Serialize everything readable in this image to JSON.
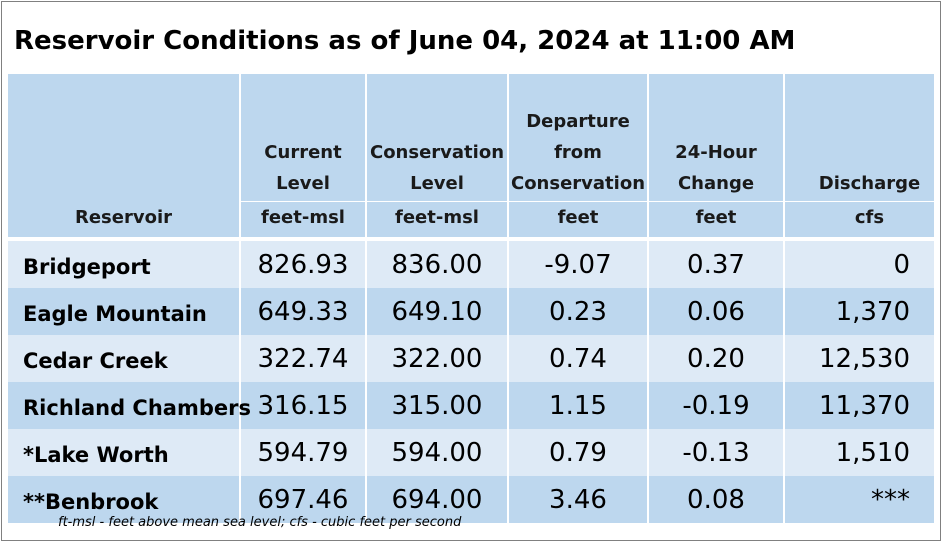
{
  "title": "Reservoir Conditions as of June 04, 2024 at 11:00 AM",
  "columns": [
    {
      "lines": [
        ""
      ],
      "label": "Reservoir",
      "unit": ""
    },
    {
      "lines": [
        "Current",
        "Level"
      ],
      "unit": "feet-msl"
    },
    {
      "lines": [
        "Conservation",
        "Level"
      ],
      "unit": "feet-msl"
    },
    {
      "lines": [
        "Departure",
        "from",
        "Conservation"
      ],
      "unit": "feet"
    },
    {
      "lines": [
        "24-Hour",
        "Change"
      ],
      "unit": "feet"
    },
    {
      "lines": [
        "Discharge"
      ],
      "unit": "cfs"
    }
  ],
  "rows": [
    {
      "reservoir": "Bridgeport",
      "current_level": "826.93",
      "conservation_level": "836.00",
      "departure": "-9.07",
      "change_24h": "0.37",
      "discharge": "0"
    },
    {
      "reservoir": "Eagle Mountain",
      "current_level": "649.33",
      "conservation_level": "649.10",
      "departure": "0.23",
      "change_24h": "0.06",
      "discharge": "1,370"
    },
    {
      "reservoir": "Cedar Creek",
      "current_level": "322.74",
      "conservation_level": "322.00",
      "departure": "0.74",
      "change_24h": "0.20",
      "discharge": "12,530"
    },
    {
      "reservoir": "Richland Chambers",
      "current_level": "316.15",
      "conservation_level": "315.00",
      "departure": "1.15",
      "change_24h": "-0.19",
      "discharge": "11,370"
    },
    {
      "reservoir": "*Lake Worth",
      "current_level": "594.79",
      "conservation_level": "594.00",
      "departure": "0.79",
      "change_24h": "-0.13",
      "discharge": "1,510"
    },
    {
      "reservoir": "**Benbrook",
      "current_level": "697.46",
      "conservation_level": "694.00",
      "departure": "3.46",
      "change_24h": "0.08",
      "discharge": "***"
    }
  ],
  "footnote": "ft-msl - feet above mean sea level; cfs - cubic feet per second",
  "colors": {
    "header_bg": "#bdd7ee",
    "row_light": "#deeaf6",
    "row_dark": "#bdd7ee"
  }
}
